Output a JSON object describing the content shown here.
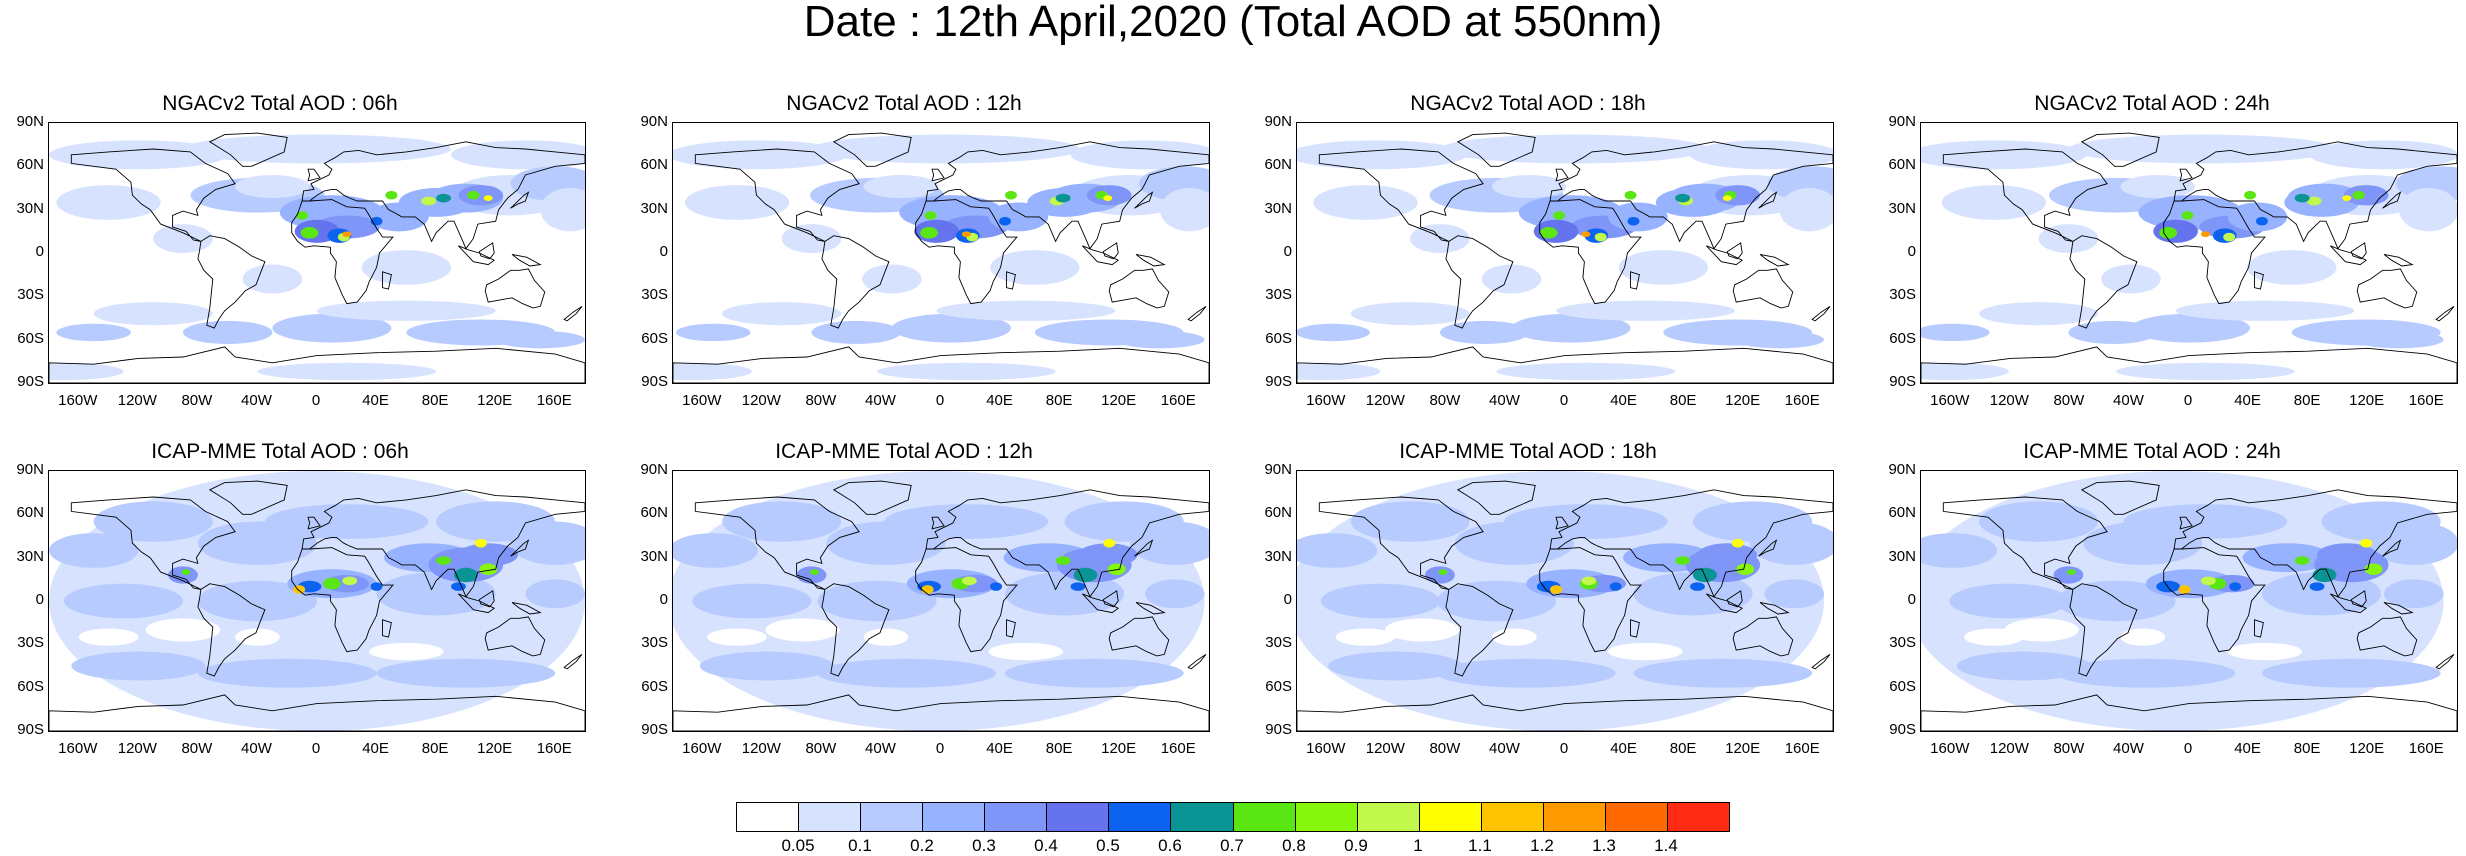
{
  "title": "Date : 12th April,2020 (Total AOD at 550nm)",
  "panels": [
    {
      "title": "NGACv2 Total AOD : 06h",
      "model": "ngac",
      "hour": 6
    },
    {
      "title": "NGACv2 Total AOD : 12h",
      "model": "ngac",
      "hour": 12
    },
    {
      "title": "NGACv2 Total AOD : 18h",
      "model": "ngac",
      "hour": 18
    },
    {
      "title": "NGACv2 Total AOD : 24h",
      "model": "ngac",
      "hour": 24
    },
    {
      "title": "ICAP-MME Total AOD : 06h",
      "model": "icap",
      "hour": 6
    },
    {
      "title": "ICAP-MME Total AOD : 12h",
      "model": "icap",
      "hour": 12
    },
    {
      "title": "ICAP-MME Total AOD : 18h",
      "model": "icap",
      "hour": 18
    },
    {
      "title": "ICAP-MME Total AOD : 24h",
      "model": "icap",
      "hour": 24
    }
  ],
  "lat_labels": [
    "90N",
    "60N",
    "30N",
    "0",
    "30S",
    "60S",
    "90S"
  ],
  "lon_labels": [
    "160W",
    "120W",
    "80W",
    "40W",
    "0",
    "40E",
    "80E",
    "120E",
    "160E"
  ],
  "lon_values": [
    -160,
    -120,
    -80,
    -40,
    0,
    40,
    80,
    120,
    160
  ],
  "colorbar": {
    "labels": [
      "0.05",
      "0.1",
      "0.2",
      "0.3",
      "0.4",
      "0.5",
      "0.6",
      "0.7",
      "0.8",
      "0.9",
      "1",
      "1.1",
      "1.2",
      "1.3",
      "1.4"
    ],
    "colors": [
      "#ffffff",
      "#d7e2ff",
      "#b8cbff",
      "#97b2ff",
      "#7f95f7",
      "#6574ee",
      "#0c63ef",
      "#0a9494",
      "#5ae612",
      "#86f70c",
      "#c2f74b",
      "#ffff00",
      "#ffc400",
      "#ff9a00",
      "#ff6a00",
      "#ff2a14"
    ]
  }
}
